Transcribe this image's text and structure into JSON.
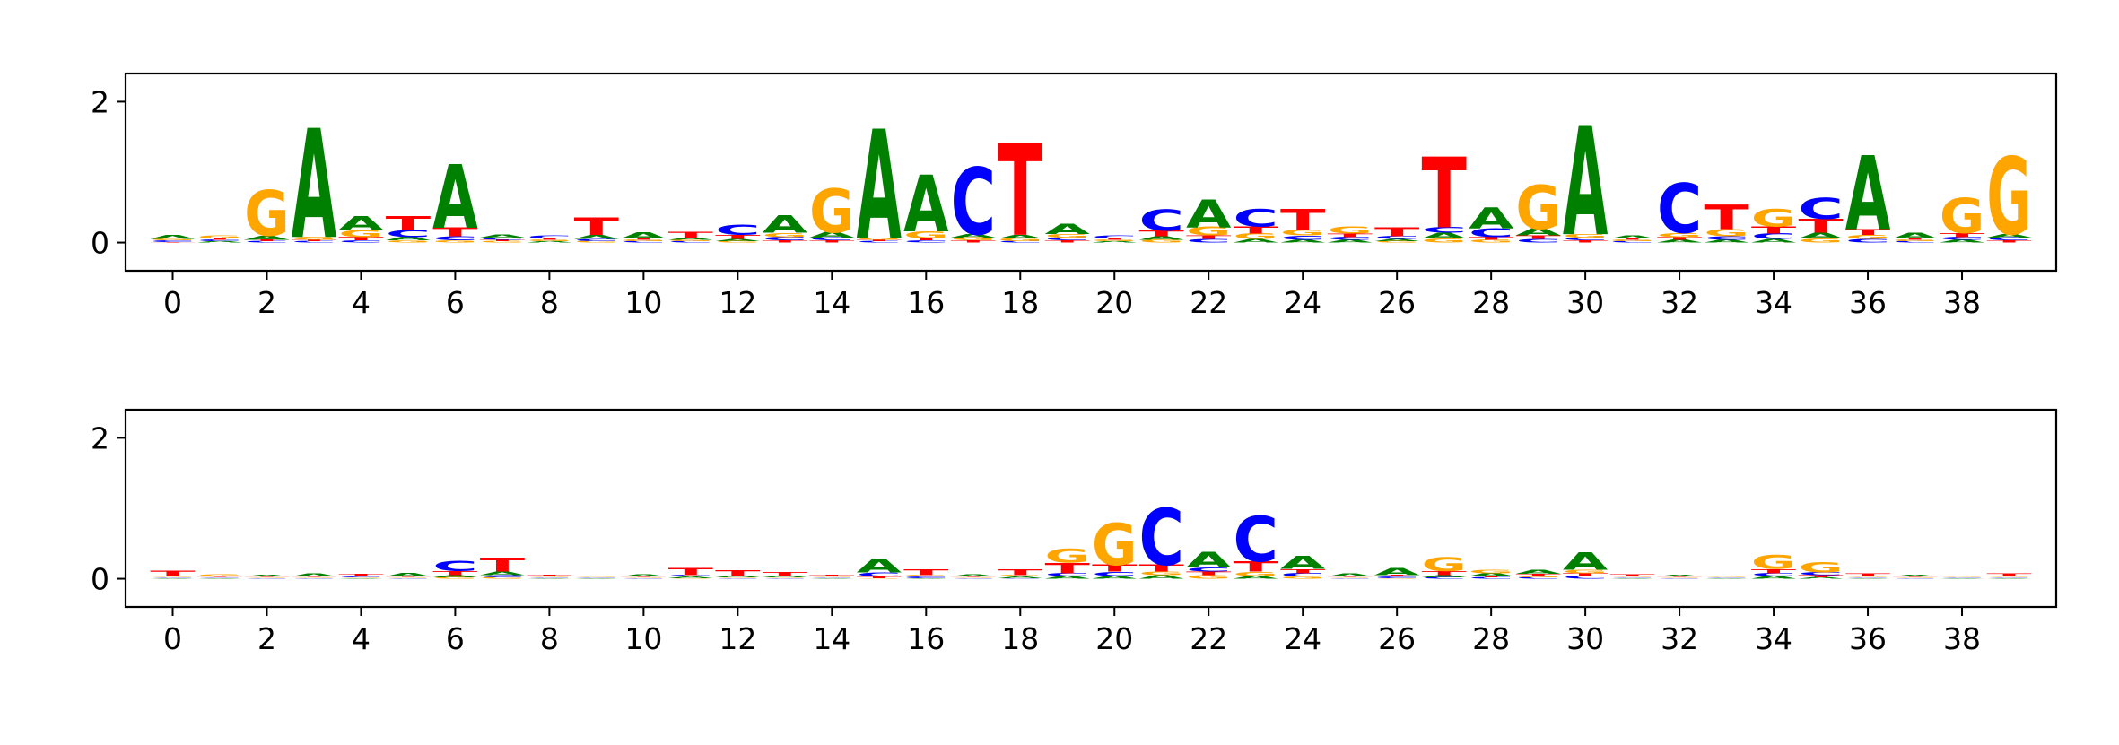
{
  "chart_data": [
    {
      "type": "sequence-logo",
      "alphabet": [
        "A",
        "C",
        "G",
        "T"
      ],
      "colors": {
        "A": "#008000",
        "C": "#0000ff",
        "G": "#ffa500",
        "T": "#ff0000"
      },
      "xticks": [
        0,
        2,
        4,
        6,
        8,
        10,
        12,
        14,
        16,
        18,
        20,
        22,
        24,
        26,
        28,
        30,
        32,
        34,
        36,
        38
      ],
      "xtick_labels": [
        "0",
        "2",
        "4",
        "6",
        "8",
        "10",
        "12",
        "14",
        "16",
        "18",
        "20",
        "22",
        "24",
        "26",
        "28",
        "30",
        "32",
        "34",
        "36",
        "38"
      ],
      "yticks": [
        0,
        2
      ],
      "ytick_labels": [
        "0",
        "2"
      ],
      "xlim": [
        -1,
        40
      ],
      "ylim": [
        -0.4,
        2.4
      ],
      "positions": [
        {
          "A": 0.06,
          "C": 0.02,
          "G": 0.02,
          "T": 0.01
        },
        {
          "A": 0.02,
          "C": 0.02,
          "G": 0.04,
          "T": 0.02
        },
        {
          "A": 0.06,
          "C": 0.02,
          "G": 0.65,
          "T": 0.02
        },
        {
          "A": 1.55,
          "C": 0.02,
          "G": 0.04,
          "T": 0.02
        },
        {
          "A": 0.2,
          "C": 0.03,
          "G": 0.1,
          "T": 0.05
        },
        {
          "A": 0.05,
          "C": 0.1,
          "G": 0.03,
          "T": 0.2
        },
        {
          "A": 0.9,
          "C": 0.06,
          "G": 0.03,
          "T": 0.12
        },
        {
          "A": 0.04,
          "C": 0.03,
          "G": 0.02,
          "T": 0.02
        },
        {
          "A": 0.02,
          "C": 0.04,
          "G": 0.02,
          "T": 0.02
        },
        {
          "A": 0.06,
          "C": 0.03,
          "G": 0.02,
          "T": 0.25
        },
        {
          "A": 0.09,
          "C": 0.02,
          "G": 0.02,
          "T": 0.02
        },
        {
          "A": 0.03,
          "C": 0.02,
          "G": 0.02,
          "T": 0.08
        },
        {
          "A": 0.03,
          "C": 0.15,
          "G": 0.02,
          "T": 0.06
        },
        {
          "A": 0.25,
          "C": 0.05,
          "G": 0.06,
          "T": 0.03
        },
        {
          "A": 0.08,
          "C": 0.04,
          "G": 0.62,
          "T": 0.03
        },
        {
          "A": 1.55,
          "C": 0.02,
          "G": 0.03,
          "T": 0.02
        },
        {
          "A": 0.8,
          "C": 0.03,
          "G": 0.1,
          "T": 0.03
        },
        {
          "A": 0.05,
          "C": 0.95,
          "G": 0.04,
          "T": 0.03
        },
        {
          "A": 0.05,
          "C": 0.02,
          "G": 0.04,
          "T": 1.3
        },
        {
          "A": 0.15,
          "C": 0.04,
          "G": 0.05,
          "T": 0.03
        },
        {
          "A": 0.02,
          "C": 0.04,
          "G": 0.02,
          "T": 0.02
        },
        {
          "A": 0.05,
          "C": 0.3,
          "G": 0.04,
          "T": 0.08
        },
        {
          "A": 0.4,
          "C": 0.05,
          "G": 0.12,
          "T": 0.05
        },
        {
          "A": 0.05,
          "C": 0.25,
          "G": 0.08,
          "T": 0.1
        },
        {
          "A": 0.04,
          "C": 0.06,
          "G": 0.08,
          "T": 0.3
        },
        {
          "A": 0.04,
          "C": 0.04,
          "G": 0.1,
          "T": 0.05
        },
        {
          "A": 0.03,
          "C": 0.04,
          "G": 0.02,
          "T": 0.12
        },
        {
          "A": 0.08,
          "C": 0.08,
          "G": 0.06,
          "T": 1.0
        },
        {
          "A": 0.3,
          "C": 0.12,
          "G": 0.04,
          "T": 0.04
        },
        {
          "A": 0.1,
          "C": 0.05,
          "G": 0.62,
          "T": 0.05
        },
        {
          "A": 1.55,
          "C": 0.04,
          "G": 0.05,
          "T": 0.03
        },
        {
          "A": 0.04,
          "C": 0.02,
          "G": 0.02,
          "T": 0.02
        },
        {
          "A": 0.04,
          "C": 0.7,
          "G": 0.06,
          "T": 0.04
        },
        {
          "A": 0.04,
          "C": 0.05,
          "G": 0.1,
          "T": 0.35
        },
        {
          "A": 0.05,
          "C": 0.08,
          "G": 0.25,
          "T": 0.1
        },
        {
          "A": 0.08,
          "C": 0.3,
          "G": 0.06,
          "T": 0.2
        },
        {
          "A": 1.05,
          "C": 0.05,
          "G": 0.06,
          "T": 0.08
        },
        {
          "A": 0.08,
          "C": 0.02,
          "G": 0.02,
          "T": 0.02
        },
        {
          "A": 0.04,
          "C": 0.04,
          "G": 0.5,
          "T": 0.06
        },
        {
          "A": 0.05,
          "C": 0.04,
          "G": 1.1,
          "T": 0.03
        }
      ]
    },
    {
      "type": "sequence-logo",
      "alphabet": [
        "A",
        "C",
        "G",
        "T"
      ],
      "colors": {
        "A": "#008000",
        "C": "#0000ff",
        "G": "#ffa500",
        "T": "#ff0000"
      },
      "xticks": [
        0,
        2,
        4,
        6,
        8,
        10,
        12,
        14,
        16,
        18,
        20,
        22,
        24,
        26,
        28,
        30,
        32,
        34,
        36,
        38
      ],
      "xtick_labels": [
        "0",
        "2",
        "4",
        "6",
        "8",
        "10",
        "12",
        "14",
        "16",
        "18",
        "20",
        "22",
        "24",
        "26",
        "28",
        "30",
        "32",
        "34",
        "36",
        "38"
      ],
      "yticks": [
        0,
        2
      ],
      "ytick_labels": [
        "0",
        "2"
      ],
      "xlim": [
        -1,
        40
      ],
      "ylim": [
        -0.4,
        2.4
      ],
      "positions": [
        {
          "A": 0.01,
          "C": 0.01,
          "G": 0.01,
          "T": 0.08
        },
        {
          "A": 0.01,
          "C": 0.01,
          "G": 0.03,
          "T": 0.01
        },
        {
          "A": 0.02,
          "C": 0.01,
          "G": 0.01,
          "T": 0.01
        },
        {
          "A": 0.04,
          "C": 0.01,
          "G": 0.01,
          "T": 0.01
        },
        {
          "A": 0.01,
          "C": 0.02,
          "G": 0.01,
          "T": 0.03
        },
        {
          "A": 0.05,
          "C": 0.01,
          "G": 0.01,
          "T": 0.01
        },
        {
          "A": 0.03,
          "C": 0.15,
          "G": 0.02,
          "T": 0.06
        },
        {
          "A": 0.05,
          "C": 0.03,
          "G": 0.02,
          "T": 0.2
        },
        {
          "A": 0.01,
          "C": 0.01,
          "G": 0.01,
          "T": 0.02
        },
        {
          "A": 0.01,
          "C": 0.01,
          "G": 0.01,
          "T": 0.01
        },
        {
          "A": 0.03,
          "C": 0.01,
          "G": 0.01,
          "T": 0.01
        },
        {
          "A": 0.02,
          "C": 0.02,
          "G": 0.01,
          "T": 0.1
        },
        {
          "A": 0.02,
          "C": 0.01,
          "G": 0.01,
          "T": 0.08
        },
        {
          "A": 0.02,
          "C": 0.01,
          "G": 0.01,
          "T": 0.06
        },
        {
          "A": 0.01,
          "C": 0.01,
          "G": 0.01,
          "T": 0.02
        },
        {
          "A": 0.2,
          "C": 0.06,
          "G": 0.01,
          "T": 0.02
        },
        {
          "A": 0.01,
          "C": 0.02,
          "G": 0.02,
          "T": 0.08
        },
        {
          "A": 0.03,
          "C": 0.01,
          "G": 0.01,
          "T": 0.01
        },
        {
          "A": 0.02,
          "C": 0.01,
          "G": 0.02,
          "T": 0.08
        },
        {
          "A": 0.04,
          "C": 0.04,
          "G": 0.2,
          "T": 0.15
        },
        {
          "A": 0.04,
          "C": 0.06,
          "G": 0.6,
          "T": 0.1
        },
        {
          "A": 0.05,
          "C": 0.8,
          "G": 0.05,
          "T": 0.1
        },
        {
          "A": 0.22,
          "C": 0.06,
          "G": 0.05,
          "T": 0.05
        },
        {
          "A": 0.04,
          "C": 0.65,
          "G": 0.06,
          "T": 0.15
        },
        {
          "A": 0.18,
          "C": 0.05,
          "G": 0.03,
          "T": 0.06
        },
        {
          "A": 0.04,
          "C": 0.01,
          "G": 0.01,
          "T": 0.01
        },
        {
          "A": 0.1,
          "C": 0.02,
          "G": 0.01,
          "T": 0.02
        },
        {
          "A": 0.03,
          "C": 0.02,
          "G": 0.2,
          "T": 0.06
        },
        {
          "A": 0.04,
          "C": 0.02,
          "G": 0.05,
          "T": 0.02
        },
        {
          "A": 0.06,
          "C": 0.02,
          "G": 0.02,
          "T": 0.03
        },
        {
          "A": 0.25,
          "C": 0.04,
          "G": 0.05,
          "T": 0.04
        },
        {
          "A": 0.01,
          "C": 0.01,
          "G": 0.01,
          "T": 0.03
        },
        {
          "A": 0.02,
          "C": 0.01,
          "G": 0.01,
          "T": 0.01
        },
        {
          "A": 0.01,
          "C": 0.01,
          "G": 0.01,
          "T": 0.01
        },
        {
          "A": 0.04,
          "C": 0.04,
          "G": 0.2,
          "T": 0.06
        },
        {
          "A": 0.02,
          "C": 0.04,
          "G": 0.15,
          "T": 0.03
        },
        {
          "A": 0.01,
          "C": 0.01,
          "G": 0.01,
          "T": 0.04
        },
        {
          "A": 0.02,
          "C": 0.01,
          "G": 0.01,
          "T": 0.01
        },
        {
          "A": 0.01,
          "C": 0.01,
          "G": 0.01,
          "T": 0.01
        },
        {
          "A": 0.01,
          "C": 0.01,
          "G": 0.01,
          "T": 0.04
        }
      ]
    }
  ]
}
